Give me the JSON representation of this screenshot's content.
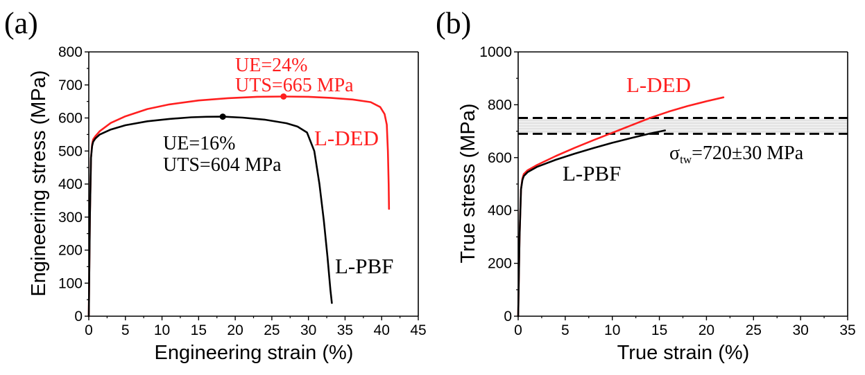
{
  "chart_data": [
    {
      "type": "line",
      "panel_label": "(a)",
      "xlabel": "Engineering strain (%)",
      "ylabel": "Engineering stress (MPa)",
      "xlim": [
        0,
        45
      ],
      "ylim": [
        0,
        800
      ],
      "xticks": [
        0,
        5,
        10,
        15,
        20,
        25,
        30,
        35,
        40,
        45
      ],
      "yticks": [
        0,
        100,
        200,
        300,
        400,
        500,
        600,
        700,
        800
      ],
      "series": [
        {
          "name": "L-DED",
          "color": "#ff1f1f",
          "x": [
            0,
            0.15,
            0.3,
            0.45,
            0.6,
            0.9,
            1.5,
            3,
            5,
            8,
            11,
            15,
            19,
            23,
            26.6,
            30,
            33,
            36,
            38.5,
            39.8,
            40.4,
            40.7,
            40.85,
            40.95,
            41.0
          ],
          "y": [
            0,
            300,
            480,
            520,
            535,
            545,
            560,
            585,
            605,
            627,
            641,
            653,
            660,
            664,
            665,
            664,
            661,
            656,
            648,
            633,
            612,
            580,
            500,
            400,
            325
          ],
          "marker": {
            "x": 26.6,
            "y": 665
          }
        },
        {
          "name": "L-PBF",
          "color": "#000000",
          "x": [
            0,
            0.15,
            0.3,
            0.45,
            0.6,
            0.9,
            1.5,
            3,
            5,
            8,
            11,
            14,
            16,
            18.3,
            21,
            24,
            27,
            28.5,
            29.8,
            30.8,
            31.5,
            32.1,
            32.6,
            33.0,
            33.2
          ],
          "y": [
            0,
            300,
            480,
            515,
            528,
            538,
            550,
            565,
            578,
            590,
            597,
            602,
            603.5,
            604,
            601,
            595,
            584,
            574,
            556,
            500,
            400,
            290,
            180,
            80,
            40
          ],
          "marker": {
            "x": 18.3,
            "y": 604
          }
        }
      ],
      "annotations": {
        "ded_ue": "UE=24%",
        "ded_uts": "UTS=665 MPa",
        "pbf_ue": "UE=16%",
        "pbf_uts": "UTS=604 MPa",
        "ded_label": "L-DED",
        "pbf_label": "L-PBF"
      }
    },
    {
      "type": "line",
      "panel_label": "(b)",
      "xlabel": "True strain (%)",
      "ylabel": "True stress (MPa)",
      "xlim": [
        0,
        35
      ],
      "ylim": [
        0,
        1000
      ],
      "xticks": [
        0,
        5,
        10,
        15,
        20,
        25,
        30,
        35
      ],
      "yticks": [
        0,
        200,
        400,
        600,
        800,
        1000
      ],
      "series": [
        {
          "name": "L-DED",
          "color": "#ff1f1f",
          "x": [
            0,
            0.15,
            0.3,
            0.45,
            0.6,
            1,
            2,
            4,
            6,
            8,
            10,
            12,
            14,
            16,
            18,
            20,
            21.8
          ],
          "y": [
            0,
            300,
            480,
            520,
            538,
            552,
            572,
            606,
            637,
            666,
            694,
            722,
            750,
            774,
            795,
            813,
            828
          ]
        },
        {
          "name": "L-PBF",
          "color": "#000000",
          "x": [
            0,
            0.15,
            0.3,
            0.45,
            0.6,
            1,
            2,
            4,
            6,
            8,
            10,
            12,
            14,
            15.6
          ],
          "y": [
            0,
            300,
            480,
            515,
            530,
            545,
            565,
            592,
            615,
            636,
            656,
            674,
            691,
            703
          ]
        }
      ],
      "band": {
        "center": 720,
        "halfwidth": 30
      },
      "annotations": {
        "sigma": "σ",
        "sigma_sub": "tw",
        "sigma_value": "=720±30 MPa",
        "ded_label": "L-DED",
        "pbf_label": "L-PBF"
      }
    }
  ]
}
